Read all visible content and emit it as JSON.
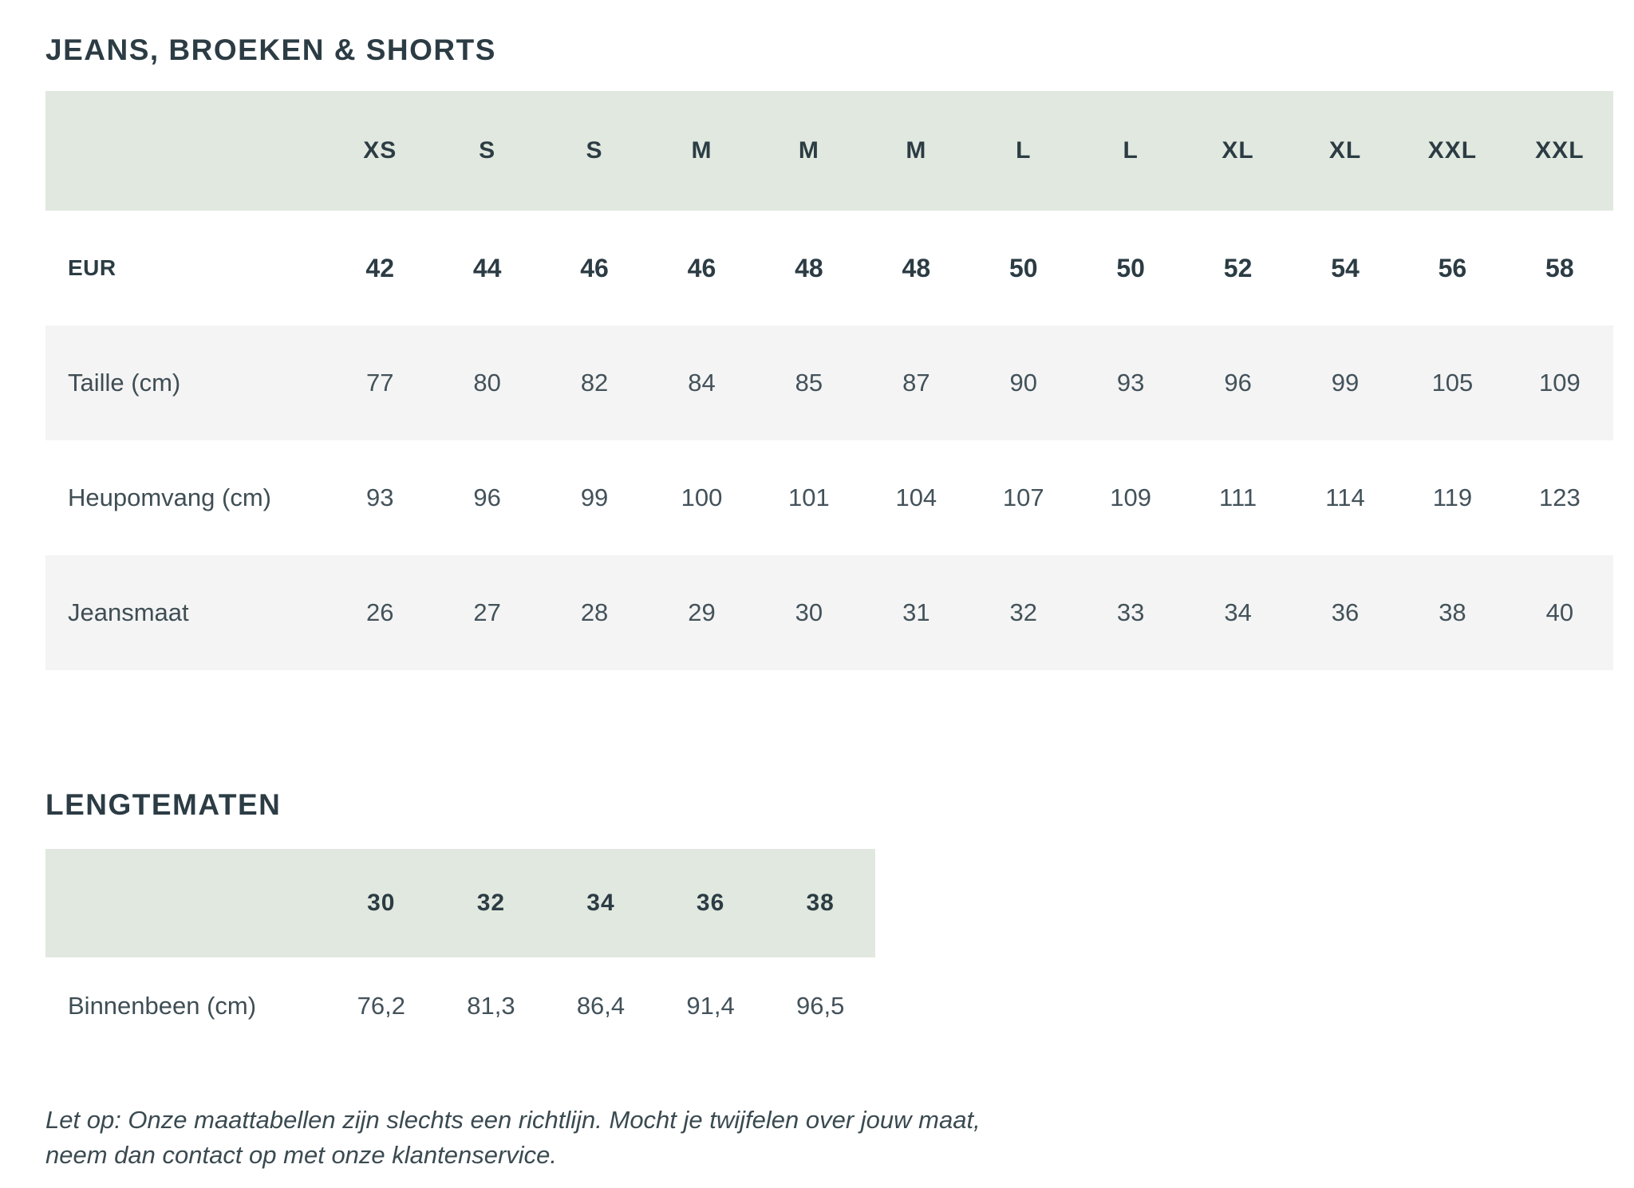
{
  "titles": {
    "jeans": "JEANS, BROEKEN & SHORTS",
    "lengths": "LENGTEMATEN"
  },
  "size_table": {
    "header": [
      "XS",
      "S",
      "S",
      "M",
      "M",
      "M",
      "L",
      "L",
      "XL",
      "XL",
      "XXL",
      "XXL"
    ],
    "rows": [
      {
        "label": "EUR",
        "bold": true,
        "bg": "white",
        "values": [
          "42",
          "44",
          "46",
          "46",
          "48",
          "48",
          "50",
          "50",
          "52",
          "54",
          "56",
          "58"
        ]
      },
      {
        "label": "Taille (cm)",
        "bold": false,
        "bg": "stripe",
        "values": [
          "77",
          "80",
          "82",
          "84",
          "85",
          "87",
          "90",
          "93",
          "96",
          "99",
          "105",
          "109"
        ]
      },
      {
        "label": "Heupomvang (cm)",
        "bold": false,
        "bg": "white",
        "values": [
          "93",
          "96",
          "99",
          "100",
          "101",
          "104",
          "107",
          "109",
          "111",
          "114",
          "119",
          "123"
        ]
      },
      {
        "label": "Jeansmaat",
        "bold": false,
        "bg": "stripe",
        "values": [
          "26",
          "27",
          "28",
          "29",
          "30",
          "31",
          "32",
          "33",
          "34",
          "36",
          "38",
          "40"
        ]
      }
    ]
  },
  "length_table": {
    "header": [
      "30",
      "32",
      "34",
      "36",
      "38"
    ],
    "rows": [
      {
        "label": "Binnenbeen (cm)",
        "bold": false,
        "bg": "white",
        "values": [
          "76,2",
          "81,3",
          "86,4",
          "91,4",
          "96,5"
        ]
      }
    ]
  },
  "note": {
    "line1": "Let op: Onze maattabellen zijn slechts een richtlijn. Mocht je twijfelen over jouw maat,",
    "line2": "neem dan contact op met onze klantenservice."
  },
  "colors": {
    "header_band": "#e1e8df",
    "stripe_row": "#f4f4f4",
    "heading_text": "#2c3c44",
    "body_text": "#43525a"
  }
}
